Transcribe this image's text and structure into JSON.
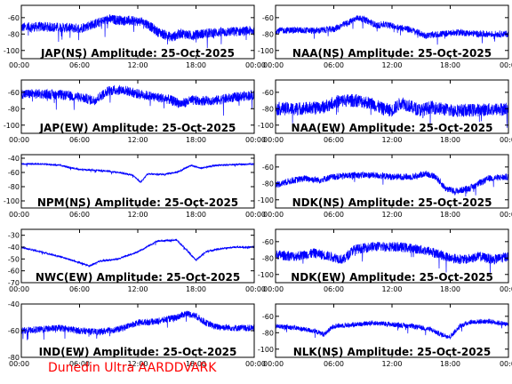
{
  "footer": "Dunedin Ultra AARDDVARK",
  "colors": {
    "trace": "#0000ff",
    "axis": "#000000",
    "footer": "#ff0000"
  },
  "x_ticks": [
    "00:00",
    "06:00",
    "12:00",
    "18:00",
    "00:00"
  ],
  "chart_data": [
    {
      "type": "line",
      "title": "JAP(NS) Amplitude: 25-Oct-2025",
      "yticks": [
        -100,
        -80,
        -60
      ],
      "ylim": [
        -110,
        -45
      ],
      "noise": 6,
      "series": [
        {
          "x": [
            0,
            2,
            4,
            6,
            8,
            9,
            10,
            11.5,
            12.5,
            13,
            14,
            15.5,
            16.5,
            17.5,
            18.5,
            20,
            22,
            24
          ],
          "y": [
            -72,
            -71,
            -72,
            -73,
            -66,
            -62,
            -63,
            -64,
            -65,
            -68,
            -77,
            -84,
            -79,
            -82,
            -80,
            -78,
            -77,
            -76
          ]
        }
      ]
    },
    {
      "type": "line",
      "title": "NAA(NS) Amplitude: 25-Oct-2025",
      "yticks": [
        -100,
        -80,
        -60
      ],
      "ylim": [
        -110,
        -45
      ],
      "noise": 4,
      "series": [
        {
          "x": [
            0,
            2,
            4,
            6,
            7.5,
            8.5,
            9.5,
            10.5,
            11,
            12,
            14,
            15.5,
            17,
            19,
            21,
            24
          ],
          "y": [
            -76,
            -75,
            -76,
            -74,
            -66,
            -60,
            -64,
            -70,
            -68,
            -70,
            -75,
            -82,
            -80,
            -78,
            -80,
            -80
          ]
        }
      ]
    },
    {
      "type": "line",
      "title": "JAP(EW) Amplitude: 25-Oct-2025",
      "yticks": [
        -100,
        -80,
        -60
      ],
      "ylim": [
        -110,
        -45
      ],
      "noise": 6,
      "series": [
        {
          "x": [
            0,
            2,
            4,
            6,
            7.5,
            9,
            10.5,
            12,
            13,
            14,
            15,
            16.5,
            17.5,
            18.5,
            20,
            22,
            24
          ],
          "y": [
            -62,
            -62,
            -63,
            -66,
            -70,
            -58,
            -57,
            -62,
            -64,
            -66,
            -68,
            -74,
            -70,
            -70,
            -70,
            -66,
            -63
          ]
        }
      ]
    },
    {
      "type": "line",
      "title": "NAA(EW) Amplitude: 25-Oct-2025",
      "yticks": [
        -100,
        -80,
        -60
      ],
      "ylim": [
        -110,
        -45
      ],
      "noise": 8,
      "series": [
        {
          "x": [
            0,
            2,
            4,
            5,
            6,
            7,
            8.5,
            10,
            11,
            12,
            13,
            14,
            15,
            16,
            17,
            18,
            20,
            22,
            24
          ],
          "y": [
            -80,
            -80,
            -79,
            -78,
            -72,
            -70,
            -70,
            -74,
            -80,
            -82,
            -72,
            -78,
            -82,
            -78,
            -80,
            -82,
            -82,
            -81,
            -80
          ]
        }
      ]
    },
    {
      "type": "line",
      "title": "NPM(NS) Amplitude: 25-Oct-2025",
      "yticks": [
        -100,
        -80,
        -60,
        -40
      ],
      "ylim": [
        -110,
        -35
      ],
      "noise": 1.2,
      "series": [
        {
          "x": [
            0,
            2,
            4,
            6,
            8,
            10,
            11.5,
            12.3,
            13,
            14.5,
            16,
            17.5,
            18.5,
            20,
            22,
            24
          ],
          "y": [
            -48,
            -48,
            -50,
            -56,
            -57,
            -60,
            -64,
            -74,
            -62,
            -63,
            -60,
            -50,
            -54,
            -50,
            -49,
            -48
          ]
        }
      ]
    },
    {
      "type": "line",
      "title": "NDK(NS) Amplitude: 25-Oct-2025",
      "yticks": [
        -100,
        -80,
        -60
      ],
      "ylim": [
        -110,
        -45
      ],
      "noise": 4,
      "series": [
        {
          "x": [
            0,
            1.5,
            3,
            4.5,
            6,
            8,
            10,
            12,
            14,
            15.5,
            16.5,
            17.5,
            18.5,
            20,
            22,
            24
          ],
          "y": [
            -82,
            -77,
            -74,
            -76,
            -72,
            -70,
            -70,
            -72,
            -72,
            -68,
            -72,
            -86,
            -90,
            -86,
            -74,
            -72
          ]
        }
      ]
    },
    {
      "type": "line",
      "title": "NWC(EW) Amplitude: 25-Oct-2025",
      "yticks": [
        -70,
        -60,
        -50,
        -40,
        -30
      ],
      "ylim": [
        -70,
        -25
      ],
      "noise": 0.8,
      "series": [
        {
          "x": [
            0,
            2,
            4,
            6,
            7,
            8,
            10,
            12,
            14,
            16,
            17,
            18,
            19,
            20,
            22,
            24
          ],
          "y": [
            -40,
            -44,
            -48,
            -53,
            -56,
            -52,
            -50,
            -44,
            -35,
            -34,
            -42,
            -51,
            -44,
            -42,
            -40,
            -40
          ]
        }
      ]
    },
    {
      "type": "line",
      "title": "NDK(EW) Amplitude: 25-Oct-2025",
      "yticks": [
        -100,
        -80,
        -60
      ],
      "ylim": [
        -110,
        -45
      ],
      "noise": 6,
      "series": [
        {
          "x": [
            0,
            2,
            4,
            6,
            7,
            8,
            10,
            12,
            14,
            16,
            17,
            18,
            19.5,
            21,
            22.5,
            24
          ],
          "y": [
            -76,
            -78,
            -74,
            -79,
            -82,
            -70,
            -66,
            -66,
            -68,
            -72,
            -76,
            -80,
            -82,
            -78,
            -82,
            -78
          ]
        }
      ]
    },
    {
      "type": "line",
      "title": "IND(EW) Amplitude: 25-Oct-2025",
      "yticks": [
        -80,
        -60,
        -40
      ],
      "ylim": [
        -80,
        -40
      ],
      "noise": 2.5,
      "series": [
        {
          "x": [
            0,
            2,
            4,
            6,
            8,
            10,
            12,
            14,
            16,
            17,
            18,
            19,
            20,
            22,
            24
          ],
          "y": [
            -60,
            -59,
            -58,
            -60,
            -61,
            -59,
            -54,
            -53,
            -50,
            -47,
            -49,
            -54,
            -57,
            -58,
            -58
          ]
        }
      ]
    },
    {
      "type": "line",
      "title": "NLK(NS) Amplitude: 25-Oct-2025",
      "yticks": [
        -100,
        -80,
        -60
      ],
      "ylim": [
        -110,
        -45
      ],
      "noise": 3,
      "series": [
        {
          "x": [
            0,
            2,
            4,
            5,
            6,
            8,
            10,
            12,
            14,
            16,
            17,
            18,
            19,
            20,
            22,
            24
          ],
          "y": [
            -72,
            -74,
            -78,
            -82,
            -72,
            -70,
            -68,
            -70,
            -72,
            -76,
            -82,
            -85,
            -72,
            -67,
            -66,
            -70
          ]
        }
      ]
    }
  ]
}
